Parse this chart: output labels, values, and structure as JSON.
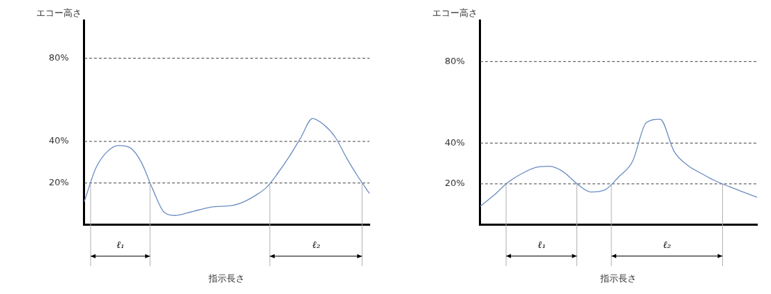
{
  "chart_data": [
    {
      "type": "line",
      "xlabel": "指示長さ",
      "ylabel": "エコー高さ",
      "categories": [
        null,
        null,
        null,
        null,
        null,
        null,
        null,
        null,
        null,
        null,
        null,
        null,
        null,
        null,
        null,
        null,
        null,
        null,
        null,
        null,
        null,
        null,
        null,
        null,
        null,
        null
      ],
      "series": [
        {
          "color": "#6a8cc0",
          "values": [
            11,
            27,
            35,
            38,
            37,
            30,
            17,
            6,
            4.4,
            5.6,
            7,
            8.3,
            8.8,
            9.2,
            11,
            14,
            18,
            25,
            33,
            42,
            51,
            48,
            42,
            32,
            23,
            15
          ]
        }
      ],
      "ylim": [
        0,
        98
      ],
      "yticks": [
        {
          "value": 20,
          "label": "20%"
        },
        {
          "value": 40,
          "label": "40%"
        },
        {
          "value": 80,
          "label": "80%"
        }
      ],
      "ref_lines": [
        {
          "axis": "y",
          "value": 20,
          "color": "#404040",
          "line_style": "dashed"
        },
        {
          "axis": "y",
          "value": 40,
          "color": "#404040",
          "line_style": "dashed"
        },
        {
          "axis": "y",
          "value": 80,
          "color": "#404040",
          "line_style": "dashed"
        }
      ],
      "annotations": [
        "ℓ₁",
        "ℓ₂"
      ],
      "grid": false,
      "legend": false,
      "marker": "none",
      "line_style": "solid",
      "tick_labels": "y"
    },
    {
      "type": "line",
      "xlabel": "指示長さ",
      "ylabel": "エコー高さ",
      "categories": [
        null,
        null,
        null,
        null,
        null,
        null,
        null,
        null,
        null,
        null,
        null,
        null,
        null,
        null,
        null,
        null,
        null,
        null,
        null,
        null,
        null
      ],
      "series": [
        {
          "color": "#6a8cc0",
          "values": [
            9,
            14.5,
            20.7,
            25,
            28,
            28.6,
            25.9,
            20,
            16,
            17,
            23.4,
            31,
            50,
            51.7,
            36,
            29,
            25,
            21.4,
            18.6,
            16,
            13.4
          ]
        }
      ],
      "ylim": [
        0,
        100
      ],
      "yticks": [
        {
          "value": 20,
          "label": "20%"
        },
        {
          "value": 40,
          "label": "40%"
        },
        {
          "value": 80,
          "label": "80%"
        }
      ],
      "ref_lines": [
        {
          "axis": "y",
          "value": 20,
          "color": "#404040",
          "line_style": "dashed"
        },
        {
          "axis": "y",
          "value": 40,
          "color": "#404040",
          "line_style": "dashed"
        },
        {
          "axis": "y",
          "value": 80,
          "color": "#404040",
          "line_style": "dashed"
        }
      ],
      "annotations": [
        "ℓ₁",
        "ℓ₂"
      ],
      "grid": false,
      "legend": false,
      "marker": "none",
      "line_style": "solid",
      "tick_labels": "y"
    }
  ]
}
